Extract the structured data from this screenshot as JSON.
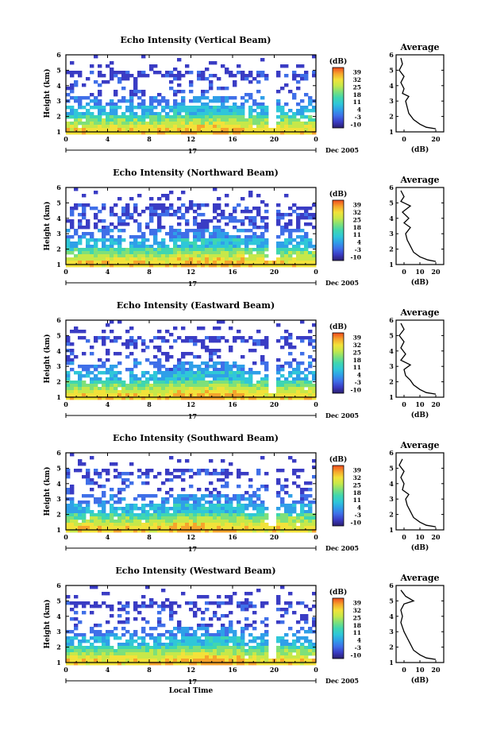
{
  "colors": {
    "colormap": [
      "#2b1f6e",
      "#3a3cc4",
      "#3f6fe8",
      "#2f9fe8",
      "#2fc7d8",
      "#3fd6b0",
      "#7ee07a",
      "#c6e84a",
      "#f2e23a",
      "#f6a42c",
      "#ee4a1e"
    ]
  },
  "shared": {
    "y_label": "Height (km)",
    "x_ticks": [
      "0",
      "4",
      "8",
      "12",
      "16",
      "20",
      "0"
    ],
    "day_label": "17",
    "month_label": "Dec 2005",
    "cb_unit": "(dB)",
    "cb_ticks": [
      "39",
      "32",
      "25",
      "18",
      "11",
      "4",
      "-3",
      "-10"
    ],
    "avg_title": "Average",
    "avg_unit": "(dB)",
    "bottom_xlabel": "Local Time"
  },
  "chart_data": [
    {
      "type": "heatmap",
      "title": "Echo Intensity (Vertical Beam)",
      "xlabel": "",
      "ylabel": "Height (km)",
      "x_range_hours": [
        0,
        24
      ],
      "ylim": [
        1,
        6
      ],
      "y_ticks": [
        "1",
        "2",
        "3",
        "4",
        "5",
        "6"
      ],
      "colorbar_range_db": [
        -10,
        39
      ],
      "avg_x_ticks": [
        "0",
        "20"
      ],
      "average_profile": {
        "height_km": [
          1.2,
          1.3,
          1.5,
          1.8,
          2.2,
          2.6,
          3.0,
          3.3,
          3.5,
          3.8,
          4.2,
          4.6,
          5.0,
          5.4,
          5.8
        ],
        "db": [
          20,
          14,
          10,
          6,
          3,
          2,
          1,
          3,
          -1,
          0,
          -2,
          0,
          -3,
          -1,
          -2
        ]
      }
    },
    {
      "type": "heatmap",
      "title": "Echo Intensity (Northward Beam)",
      "xlabel": "",
      "ylabel": "Height (km)",
      "x_range_hours": [
        0,
        24
      ],
      "ylim": [
        1,
        6
      ],
      "y_ticks": [
        "1",
        "2",
        "3",
        "4",
        "5",
        "6"
      ],
      "colorbar_range_db": [
        -10,
        39
      ],
      "avg_x_ticks": [
        "0",
        "10",
        "20"
      ],
      "average_profile": {
        "height_km": [
          1.2,
          1.3,
          1.5,
          1.8,
          2.2,
          2.6,
          3.0,
          3.4,
          3.7,
          4.0,
          4.4,
          4.8,
          5.1,
          5.4,
          5.8
        ],
        "db": [
          20,
          15,
          10,
          6,
          4,
          2,
          1,
          4,
          0,
          3,
          -1,
          4,
          -2,
          0,
          -2
        ]
      }
    },
    {
      "type": "heatmap",
      "title": "Echo Intensity (Eastward Beam)",
      "xlabel": "",
      "ylabel": "Height (km)",
      "x_range_hours": [
        0,
        24
      ],
      "ylim": [
        1,
        6
      ],
      "y_ticks": [
        "1",
        "2",
        "3",
        "4",
        "5",
        "6"
      ],
      "colorbar_range_db": [
        -10,
        39
      ],
      "avg_x_ticks": [
        "0",
        "10",
        "20"
      ],
      "average_profile": {
        "height_km": [
          1.2,
          1.3,
          1.5,
          1.8,
          2.1,
          2.4,
          2.8,
          3.1,
          3.4,
          3.8,
          4.2,
          4.6,
          5.0,
          5.4,
          5.8
        ],
        "db": [
          20,
          14,
          10,
          6,
          4,
          1,
          0,
          4,
          -2,
          1,
          -2,
          0,
          -3,
          0,
          -2
        ]
      }
    },
    {
      "type": "heatmap",
      "title": "Echo Intensity (Southward Beam)",
      "xlabel": "",
      "ylabel": "Height (km)",
      "x_range_hours": [
        0,
        24
      ],
      "ylim": [
        1,
        6
      ],
      "y_ticks": [
        "1",
        "2",
        "3",
        "4",
        "5",
        "6"
      ],
      "colorbar_range_db": [
        -10,
        39
      ],
      "avg_x_ticks": [
        "0",
        "10",
        "20"
      ],
      "average_profile": {
        "height_km": [
          1.2,
          1.3,
          1.5,
          1.8,
          2.2,
          2.6,
          3.0,
          3.3,
          3.6,
          4.0,
          4.4,
          4.8,
          5.2,
          5.6
        ],
        "db": [
          20,
          14,
          10,
          6,
          4,
          2,
          1,
          3,
          -1,
          0,
          -2,
          0,
          -3,
          -1
        ]
      }
    },
    {
      "type": "heatmap",
      "title": "Echo Intensity (Westward Beam)",
      "xlabel": "Local Time",
      "ylabel": "Height (km)",
      "x_range_hours": [
        0,
        24
      ],
      "ylim": [
        1,
        6
      ],
      "y_ticks": [
        "1",
        "2",
        "3",
        "4",
        "5",
        "6"
      ],
      "colorbar_range_db": [
        -10,
        39
      ],
      "avg_x_ticks": [
        "0",
        "10",
        "20"
      ],
      "average_profile": {
        "height_km": [
          1.2,
          1.3,
          1.5,
          1.8,
          2.2,
          2.6,
          3.0,
          3.3,
          3.6,
          4.0,
          4.4,
          4.8,
          5.0,
          5.3,
          5.7
        ],
        "db": [
          20,
          14,
          10,
          6,
          4,
          2,
          0,
          -1,
          -2,
          -1,
          -2,
          0,
          6,
          1,
          -2
        ]
      }
    }
  ]
}
